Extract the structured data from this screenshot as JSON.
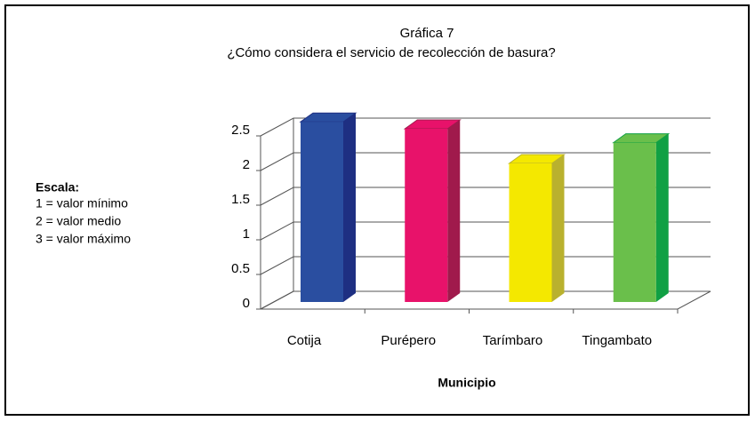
{
  "chart_data": {
    "type": "bar3d",
    "title": "Gráfica 7",
    "subtitle": "¿Cómo considera el servicio de recolección de basura?",
    "xlabel": "Municipio",
    "categories": [
      "Cotija",
      "Purépero",
      "Tarímbaro",
      "Tingambato"
    ],
    "values": [
      2.6,
      2.5,
      2.0,
      2.3
    ],
    "colors": [
      "#2a4ea0",
      "#e8126a",
      "#f4e800",
      "#6abf4b"
    ],
    "side_colors": [
      "#1e2f82",
      "#a01a4c",
      "#b9b12e",
      "#10a044"
    ],
    "ylim": [
      0,
      2.5
    ],
    "yticks": [
      0,
      0.5,
      1,
      1.5,
      2,
      2.5
    ],
    "grid": true,
    "annotation": {
      "heading": "Escala:",
      "lines": [
        "1 = valor mínimo",
        "2 = valor medio",
        "3 = valor máximo"
      ]
    }
  }
}
